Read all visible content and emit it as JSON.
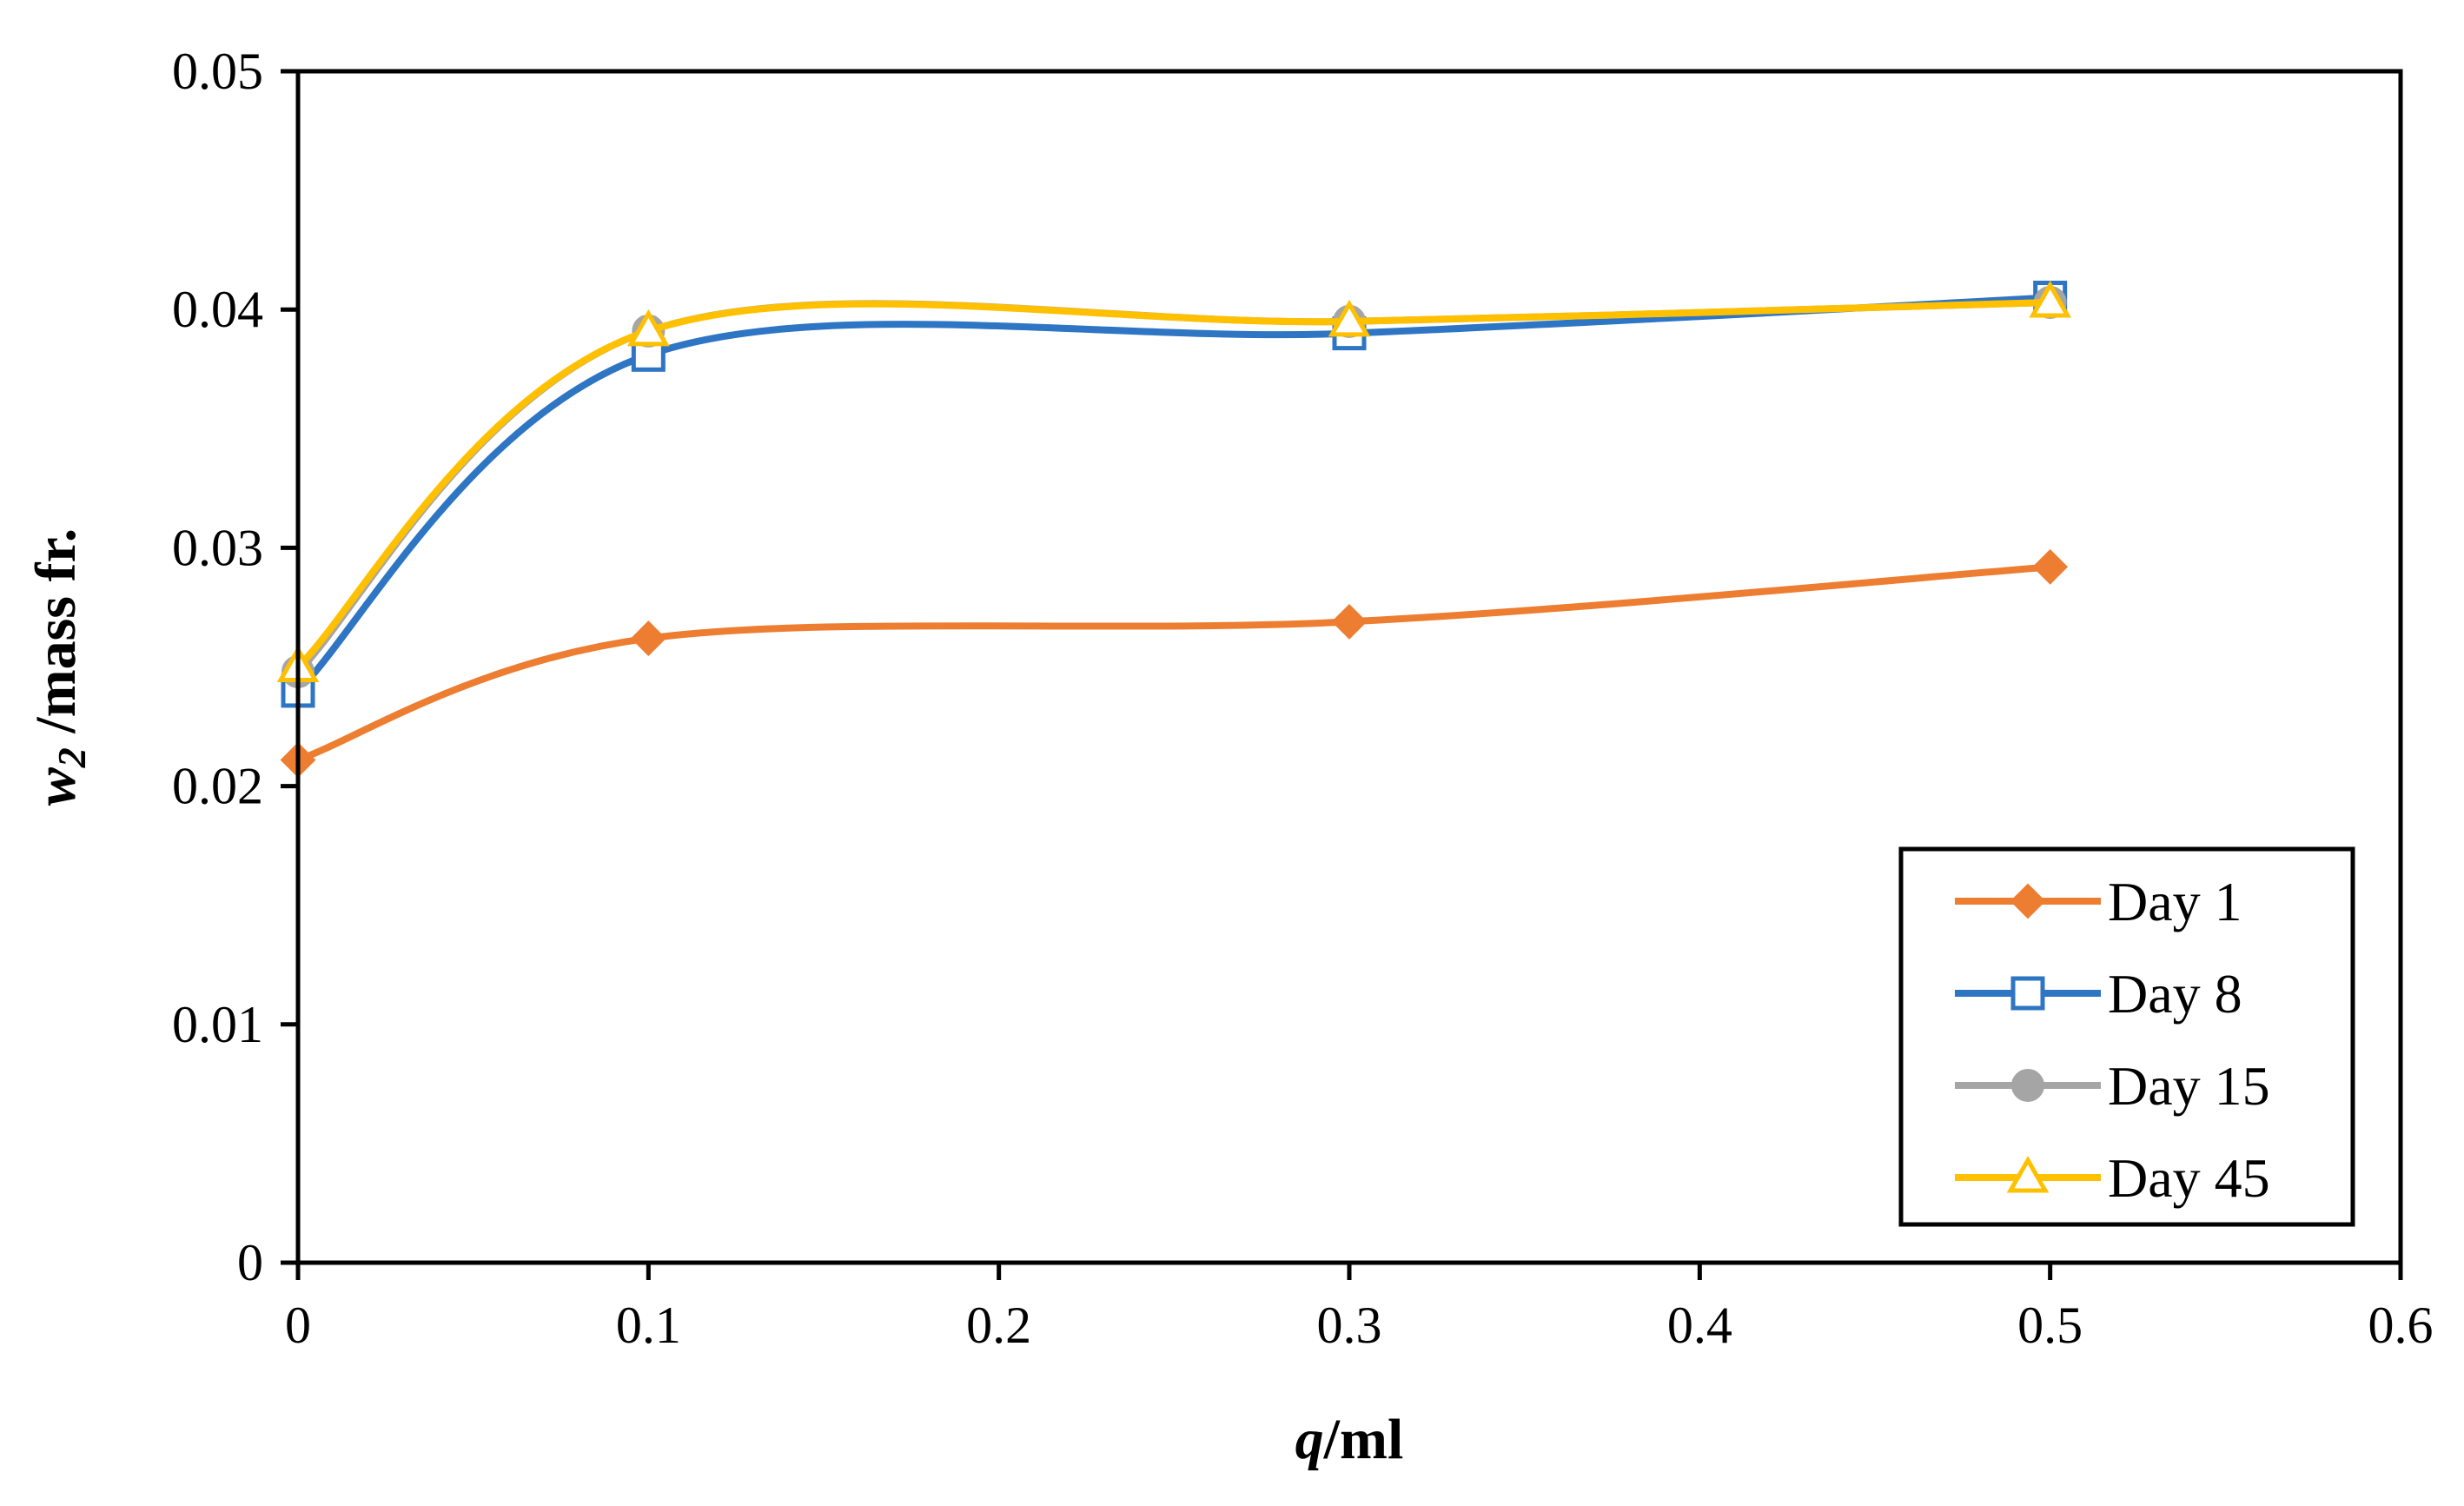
{
  "chart_data": {
    "type": "line",
    "smooth": true,
    "title": "",
    "xlabel": {
      "var": "q",
      "rest": "/ml"
    },
    "ylabel": {
      "var": "w",
      "sub": "2",
      "rest": " /mass fr."
    },
    "xlim": [
      0,
      0.6
    ],
    "ylim": [
      0,
      0.05
    ],
    "xticks": [
      0,
      0.1,
      0.2,
      0.3,
      0.4,
      0.5,
      0.6
    ],
    "xtick_labels": [
      "0",
      "0.1",
      "0.2",
      "0.3",
      "0.4",
      "0.5",
      "0.6"
    ],
    "yticks": [
      0,
      0.01,
      0.02,
      0.03,
      0.04,
      0.05
    ],
    "ytick_labels": [
      "0",
      "0.01",
      "0.02",
      "0.03",
      "0.04",
      "0.05"
    ],
    "grid": false,
    "legend_position": "bottom-right",
    "x": [
      0,
      0.1,
      0.3,
      0.5
    ],
    "series": [
      {
        "name": "Day  1",
        "color": "#ED7D31",
        "marker": "diamond",
        "values": [
          0.0211,
          0.0262,
          0.0269,
          0.0292
        ]
      },
      {
        "name": "Day  8",
        "color": "#2E75C4",
        "marker": "square-open",
        "values": [
          0.024,
          0.0381,
          0.039,
          0.0405
        ]
      },
      {
        "name": "Day  15",
        "color": "#A5A5A5",
        "marker": "circle",
        "values": [
          0.0248,
          0.0391,
          0.0395,
          0.0403
        ]
      },
      {
        "name": "Day  45",
        "color": "#FFC000",
        "marker": "triangle-open",
        "values": [
          0.025,
          0.0391,
          0.0395,
          0.0403
        ]
      }
    ]
  }
}
